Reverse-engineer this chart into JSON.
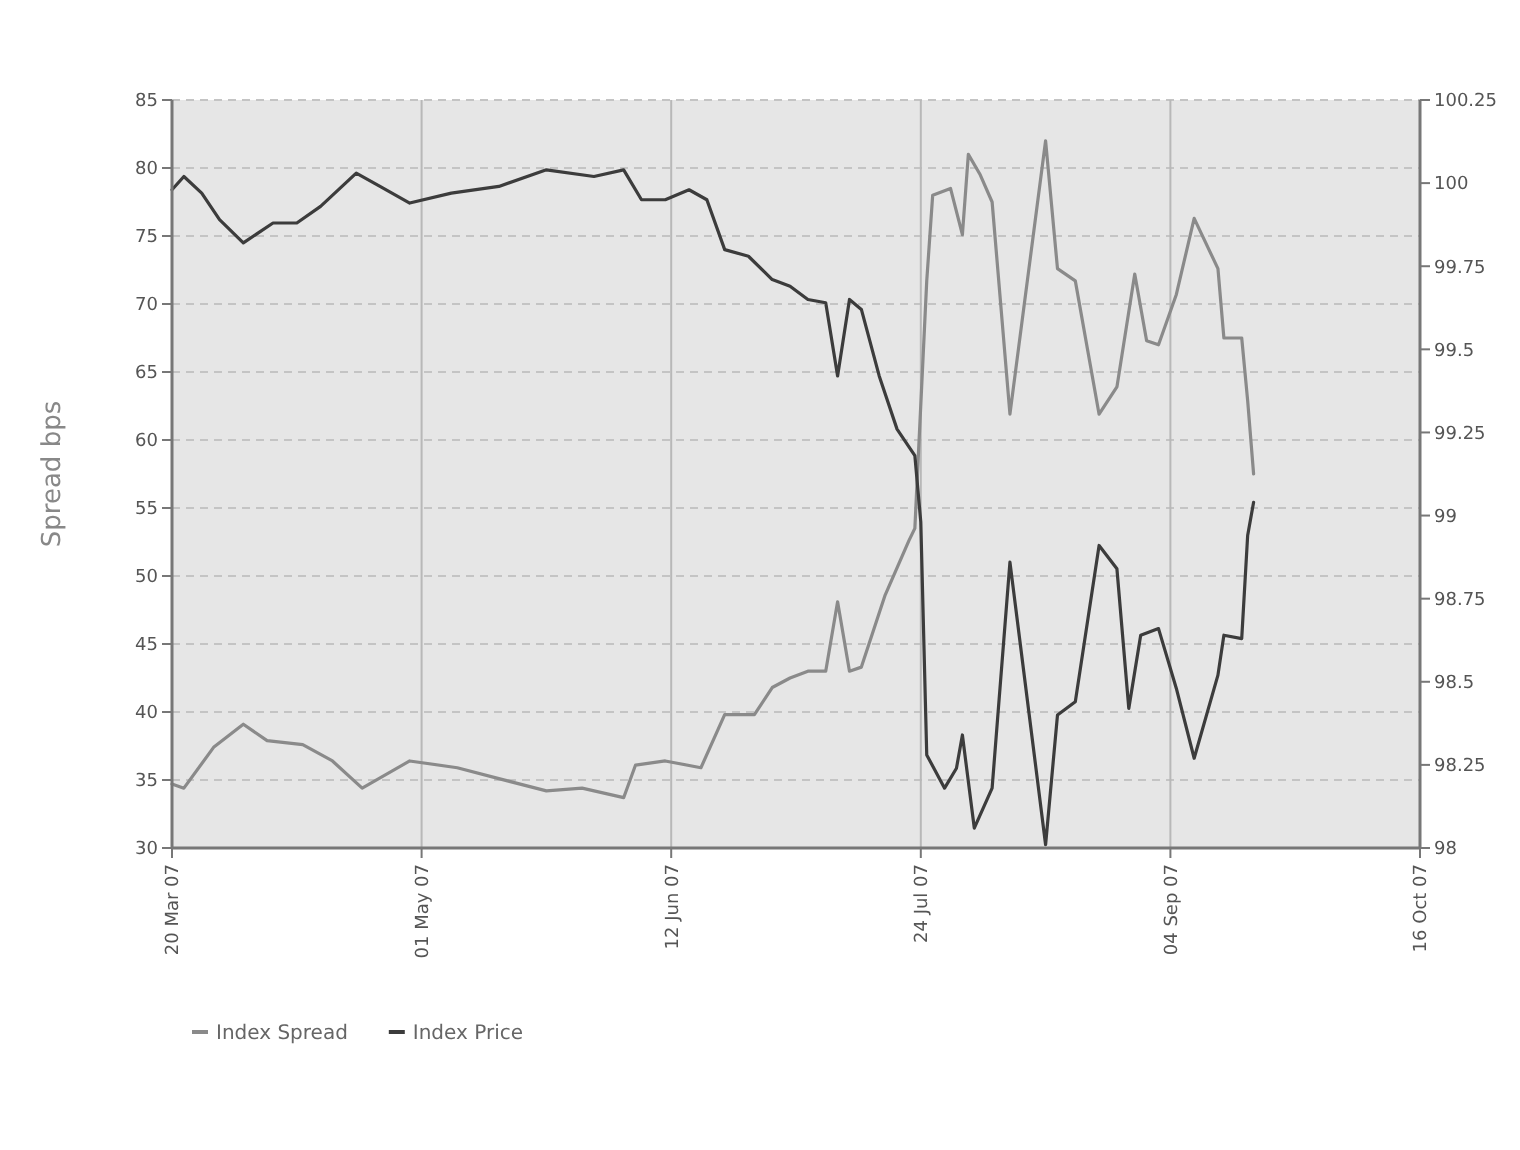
{
  "chart_data": {
    "type": "line",
    "ylabel": "Spread bps",
    "legend": "bottom left",
    "grid": true,
    "xlim": [
      "2007-03-20",
      "2007-10-16"
    ],
    "xticks": [
      {
        "value": "2007-03-20",
        "label": "20 Mar 07"
      },
      {
        "value": "2007-05-01",
        "label": "01 May 07"
      },
      {
        "value": "2007-06-12",
        "label": "12 Jun 07"
      },
      {
        "value": "2007-07-24",
        "label": "24 Jul 07"
      },
      {
        "value": "2007-09-04",
        "label": "04 Sep 07"
      },
      {
        "value": "2007-10-16",
        "label": "16 Oct 07"
      }
    ],
    "ylim": [
      30,
      85
    ],
    "yticks": [
      30,
      35,
      40,
      45,
      50,
      55,
      60,
      65,
      70,
      75,
      80,
      85
    ],
    "y2lim": [
      98,
      100.25
    ],
    "y2ticks": [
      98,
      98.25,
      98.5,
      98.75,
      99,
      99.25,
      99.5,
      99.75,
      100,
      100.25
    ],
    "series": [
      {
        "name": "Index Spread",
        "color": "#8a8a8a",
        "x": [
          "2007-03-20",
          "2007-03-22",
          "2007-03-27",
          "2007-04-01",
          "2007-04-05",
          "2007-04-11",
          "2007-04-16",
          "2007-04-21",
          "2007-04-29",
          "2007-05-07",
          "2007-05-14",
          "2007-05-22",
          "2007-05-28",
          "2007-06-04",
          "2007-06-06",
          "2007-06-11",
          "2007-06-17",
          "2007-06-21",
          "2007-06-26",
          "2007-06-29",
          "2007-07-02",
          "2007-07-05",
          "2007-07-08",
          "2007-07-10",
          "2007-07-12",
          "2007-07-14",
          "2007-07-18",
          "2007-07-22",
          "2007-07-23",
          "2007-07-25",
          "2007-07-26",
          "2007-07-29",
          "2007-07-31",
          "2007-08-01",
          "2007-08-03",
          "2007-08-05",
          "2007-08-08",
          "2007-08-14",
          "2007-08-16",
          "2007-08-19",
          "2007-08-23",
          "2007-08-26",
          "2007-08-29",
          "2007-08-31",
          "2007-09-02",
          "2007-09-05",
          "2007-09-08",
          "2007-09-12",
          "2007-09-13",
          "2007-09-16",
          "2007-09-17",
          "2007-09-18"
        ],
        "values": [
          34.7,
          34.4,
          37.4,
          39.1,
          37.9,
          37.6,
          36.4,
          34.4,
          36.4,
          35.9,
          35.1,
          34.2,
          34.4,
          33.7,
          36.1,
          36.4,
          35.9,
          39.8,
          39.8,
          41.8,
          42.5,
          43.0,
          43.0,
          48.1,
          43.0,
          43.3,
          48.6,
          52.6,
          53.5,
          71.7,
          78.0,
          78.5,
          75.1,
          81.0,
          79.5,
          77.5,
          61.9,
          82.0,
          72.6,
          71.7,
          61.9,
          63.9,
          72.2,
          67.3,
          67.0,
          70.7,
          76.3,
          72.6,
          67.5,
          67.5,
          62.9,
          57.5
        ]
      },
      {
        "name": "Index Price",
        "color": "#3c3c3c",
        "axis": "y2",
        "x": [
          "2007-03-20",
          "2007-03-22",
          "2007-03-25",
          "2007-03-28",
          "2007-04-01",
          "2007-04-06",
          "2007-04-10",
          "2007-04-14",
          "2007-04-20",
          "2007-04-24",
          "2007-04-29",
          "2007-05-06",
          "2007-05-14",
          "2007-05-22",
          "2007-05-30",
          "2007-06-04",
          "2007-06-07",
          "2007-06-11",
          "2007-06-15",
          "2007-06-18",
          "2007-06-21",
          "2007-06-25",
          "2007-06-29",
          "2007-07-02",
          "2007-07-05",
          "2007-07-08",
          "2007-07-10",
          "2007-07-12",
          "2007-07-14",
          "2007-07-17",
          "2007-07-20",
          "2007-07-23",
          "2007-07-24",
          "2007-07-25",
          "2007-07-28",
          "2007-07-30",
          "2007-07-31",
          "2007-08-02",
          "2007-08-05",
          "2007-08-08",
          "2007-08-14",
          "2007-08-16",
          "2007-08-19",
          "2007-08-23",
          "2007-08-26",
          "2007-08-28",
          "2007-08-30",
          "2007-09-02",
          "2007-09-05",
          "2007-09-08",
          "2007-09-12",
          "2007-09-13",
          "2007-09-16",
          "2007-09-17",
          "2007-09-18"
        ],
        "values": [
          99.98,
          100.02,
          99.97,
          99.89,
          99.82,
          99.88,
          99.88,
          99.93,
          100.03,
          99.99,
          99.94,
          99.97,
          99.99,
          100.04,
          100.02,
          100.04,
          99.95,
          99.95,
          99.98,
          99.95,
          99.8,
          99.78,
          99.71,
          99.69,
          99.65,
          99.64,
          99.42,
          99.65,
          99.62,
          99.42,
          99.26,
          99.18,
          98.98,
          98.28,
          98.18,
          98.24,
          98.34,
          98.06,
          98.18,
          98.86,
          98.01,
          98.4,
          98.44,
          98.91,
          98.84,
          98.42,
          98.64,
          98.66,
          98.48,
          98.27,
          98.52,
          98.64,
          98.63,
          98.94,
          99.04
        ]
      }
    ]
  }
}
